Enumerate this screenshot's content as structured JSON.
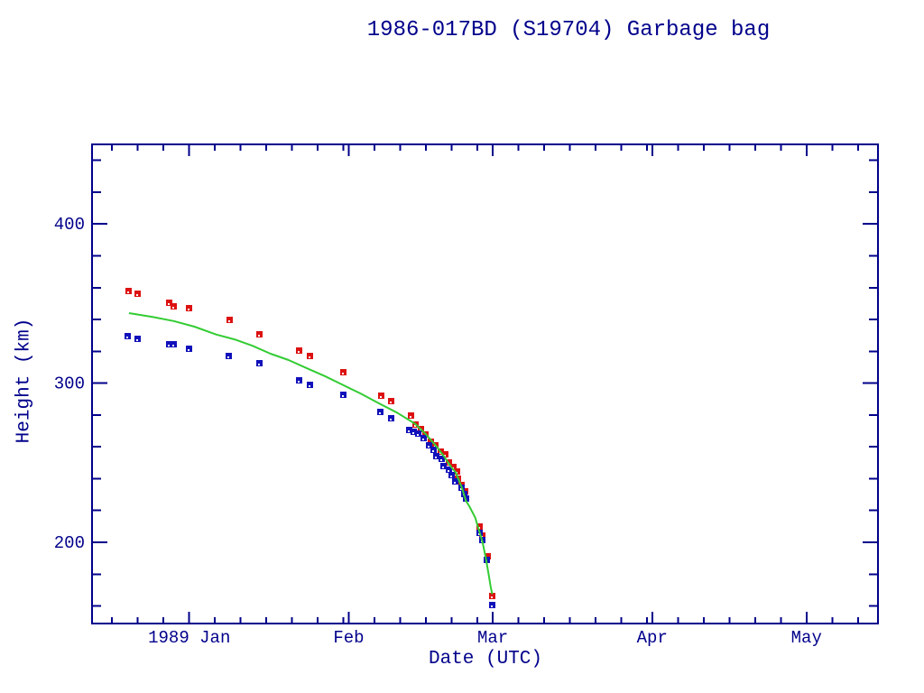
{
  "title": "1986-017BD (S19704) Garbage bag",
  "colors": {
    "background": "#ffffff",
    "axis_and_text": "#00008b",
    "apogee_marker": "#dd1111",
    "perigee_marker": "#1111bb",
    "model_line": "#33cc33",
    "marker_dot": "#ffffff"
  },
  "chart_data": {
    "type": "scatter",
    "title": "1986-017BD (S19704) Garbage bag",
    "xlabel": "Date (UTC)",
    "ylabel": "Height (km)",
    "x_unit": "day of 1989 (Jan 1 = 1; negative values = Dec 1988)",
    "xlim": [
      -17.9,
      134.9
    ],
    "ylim": [
      149,
      450
    ],
    "grid": false,
    "legend": "none",
    "x_major_ticks": [
      {
        "day": 1,
        "label": "1989 Jan"
      },
      {
        "day": 32,
        "label": "Feb"
      },
      {
        "day": 60,
        "label": "Mar"
      },
      {
        "day": 91,
        "label": "Apr"
      },
      {
        "day": 121,
        "label": "May"
      }
    ],
    "x_minor_ticks": [
      -14,
      -9,
      -4,
      6,
      11,
      16,
      21,
      26,
      31,
      37,
      42,
      47,
      52,
      57,
      65,
      70,
      75,
      80,
      85,
      90,
      96,
      101,
      106,
      111,
      116,
      126,
      131
    ],
    "y_major_ticks": [
      200,
      300,
      400
    ],
    "y_minor_ticks": [
      160,
      180,
      220,
      240,
      260,
      280,
      320,
      340,
      360,
      380,
      420,
      440
    ],
    "series": [
      {
        "name": "apogee height (red squares)",
        "type": "scatter",
        "color": "#dd1111",
        "points": [
          [
            -10.9,
            358
          ],
          [
            -9.1,
            356.5
          ],
          [
            -3.0,
            351
          ],
          [
            -2.1,
            348.5
          ],
          [
            0.9,
            347.5
          ],
          [
            8.7,
            340
          ],
          [
            14.5,
            331
          ],
          [
            22.2,
            321
          ],
          [
            24.4,
            317.5
          ],
          [
            30.8,
            307
          ],
          [
            38.3,
            292.5
          ],
          [
            40.1,
            289
          ],
          [
            44.0,
            280
          ],
          [
            44.9,
            274.5
          ],
          [
            45.9,
            271.5
          ],
          [
            46.9,
            268
          ],
          [
            47.9,
            263.5
          ],
          [
            48.8,
            261.5
          ],
          [
            49.8,
            257
          ],
          [
            50.7,
            255.5
          ],
          [
            51.4,
            250.5
          ],
          [
            52.2,
            247.5
          ],
          [
            52.9,
            245
          ],
          [
            53.1,
            240.5
          ],
          [
            53.9,
            236.5
          ],
          [
            54.6,
            232.5
          ],
          [
            57.4,
            210.5
          ],
          [
            57.9,
            204.5
          ],
          [
            58.9,
            191.5
          ],
          [
            59.9,
            166.5
          ]
        ]
      },
      {
        "name": "perigee height (blue squares)",
        "type": "scatter",
        "color": "#1111bb",
        "points": [
          [
            -11.0,
            330
          ],
          [
            -9.1,
            328
          ],
          [
            -3.0,
            325
          ],
          [
            -2.1,
            324.5
          ],
          [
            0.9,
            322
          ],
          [
            8.6,
            317.5
          ],
          [
            14.6,
            313
          ],
          [
            22.2,
            302
          ],
          [
            24.4,
            299.5
          ],
          [
            30.8,
            293
          ],
          [
            38.1,
            282
          ],
          [
            40.1,
            278.5
          ],
          [
            43.7,
            271
          ],
          [
            44.6,
            270
          ],
          [
            45.4,
            268.5
          ],
          [
            46.5,
            266
          ],
          [
            47.6,
            261
          ],
          [
            48.5,
            258.5
          ],
          [
            49.0,
            254.5
          ],
          [
            50.0,
            252.5
          ],
          [
            50.4,
            248
          ],
          [
            51.4,
            246
          ],
          [
            52.0,
            242.5
          ],
          [
            52.6,
            238.5
          ],
          [
            53.8,
            234.5
          ],
          [
            54.4,
            230.5
          ],
          [
            54.8,
            228
          ],
          [
            57.3,
            206
          ],
          [
            57.8,
            201.5
          ],
          [
            58.8,
            189
          ],
          [
            59.9,
            161
          ]
        ]
      },
      {
        "name": "mean height decay model (green line)",
        "type": "line",
        "color": "#33cc33",
        "points": [
          [
            -10.7,
            344
          ],
          [
            -6,
            341.5
          ],
          [
            -2,
            339
          ],
          [
            2,
            335.5
          ],
          [
            6.3,
            330.5
          ],
          [
            9.8,
            327.5
          ],
          [
            13.3,
            323.5
          ],
          [
            16.8,
            318.5
          ],
          [
            20.3,
            314.5
          ],
          [
            23.8,
            309.5
          ],
          [
            27.3,
            304.5
          ],
          [
            30.8,
            299
          ],
          [
            34.3,
            293.5
          ],
          [
            37.8,
            287.5
          ],
          [
            41.4,
            281.5
          ],
          [
            44.9,
            274.5
          ],
          [
            47.0,
            268
          ],
          [
            49.0,
            260.5
          ],
          [
            50.2,
            255.5
          ],
          [
            52.0,
            247
          ],
          [
            52.8,
            244
          ],
          [
            54.0,
            234.5
          ],
          [
            54.8,
            226
          ],
          [
            55.4,
            223
          ],
          [
            56.6,
            215.5
          ],
          [
            57.1,
            210
          ],
          [
            58.0,
            200.5
          ],
          [
            58.6,
            191
          ],
          [
            59.2,
            180
          ],
          [
            59.6,
            172
          ],
          [
            59.9,
            167.5
          ]
        ]
      }
    ]
  }
}
